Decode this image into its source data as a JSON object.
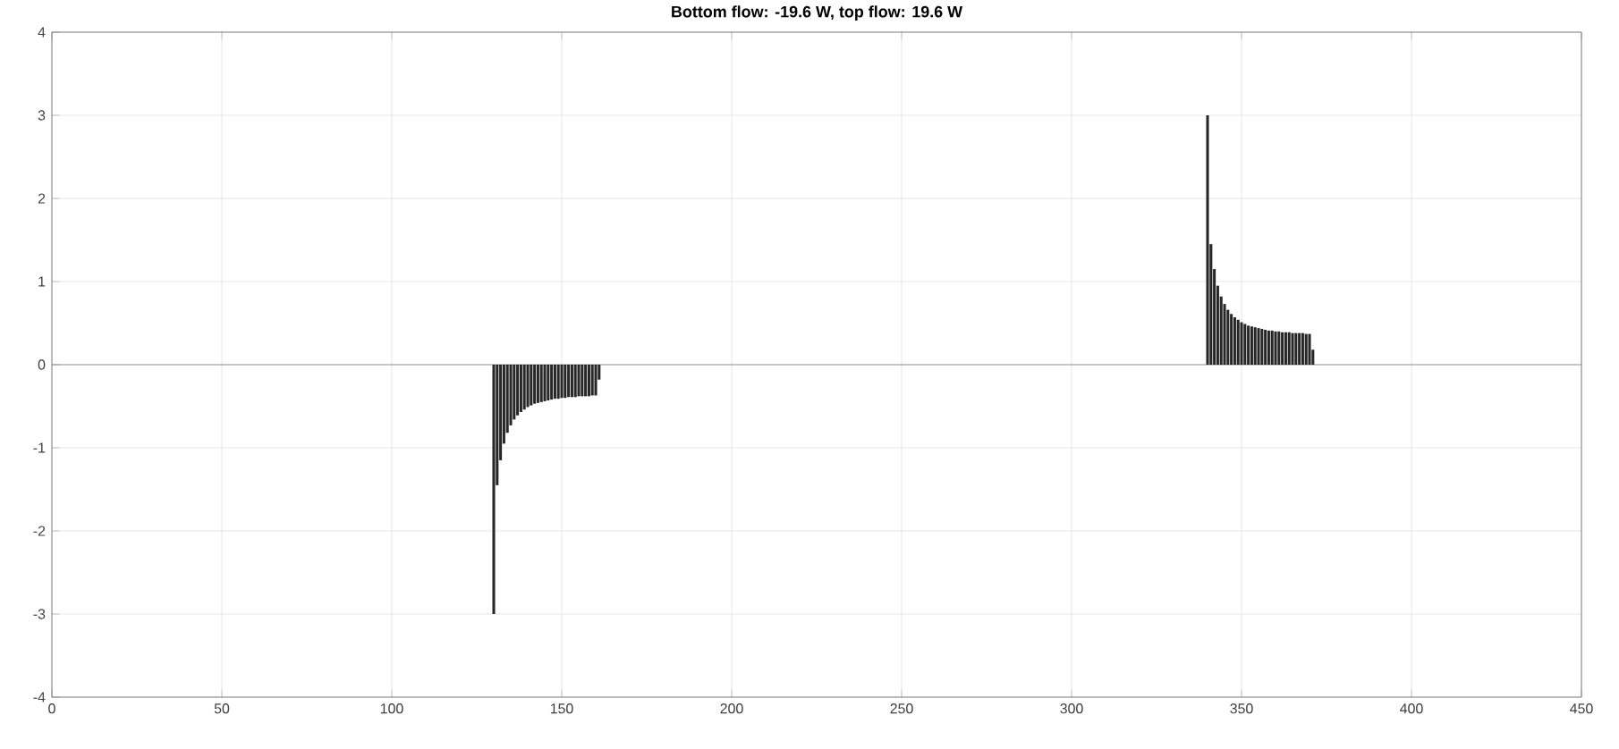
{
  "chart_data": {
    "type": "bar",
    "title": "Bottom flow: -19.6 W, top flow: 19.6 W",
    "x": [
      130,
      131,
      132,
      133,
      134,
      135,
      136,
      137,
      138,
      139,
      140,
      141,
      142,
      143,
      144,
      145,
      146,
      147,
      148,
      149,
      150,
      151,
      152,
      153,
      154,
      155,
      156,
      157,
      158,
      159,
      160,
      161,
      340,
      341,
      342,
      343,
      344,
      345,
      346,
      347,
      348,
      349,
      350,
      351,
      352,
      353,
      354,
      355,
      356,
      357,
      358,
      359,
      360,
      361,
      362,
      363,
      364,
      365,
      366,
      367,
      368,
      369,
      370,
      371
    ],
    "values": [
      -3,
      -1.45,
      -1.15,
      -0.95,
      -0.82,
      -0.73,
      -0.66,
      -0.61,
      -0.57,
      -0.54,
      -0.51,
      -0.49,
      -0.47,
      -0.46,
      -0.45,
      -0.44,
      -0.43,
      -0.42,
      -0.41,
      -0.41,
      -0.4,
      -0.4,
      -0.39,
      -0.39,
      -0.39,
      -0.38,
      -0.38,
      -0.38,
      -0.38,
      -0.37,
      -0.37,
      -0.18,
      3,
      1.45,
      1.15,
      0.95,
      0.82,
      0.73,
      0.66,
      0.61,
      0.57,
      0.54,
      0.51,
      0.49,
      0.47,
      0.46,
      0.45,
      0.44,
      0.43,
      0.42,
      0.41,
      0.41,
      0.4,
      0.4,
      0.39,
      0.39,
      0.39,
      0.38,
      0.38,
      0.38,
      0.38,
      0.37,
      0.37,
      0.18
    ],
    "color": "#262626",
    "xlim": [
      0,
      450
    ],
    "xticks": [
      0,
      50,
      100,
      150,
      200,
      250,
      300,
      350,
      400,
      450
    ],
    "ylim": [
      -4,
      4
    ],
    "yticks": [
      -4,
      -3,
      -2,
      -1,
      0,
      1,
      2,
      3,
      4
    ],
    "grid": true,
    "ref_lines": [
      {
        "axis": "y",
        "value": 0,
        "color": "#808080"
      }
    ]
  }
}
